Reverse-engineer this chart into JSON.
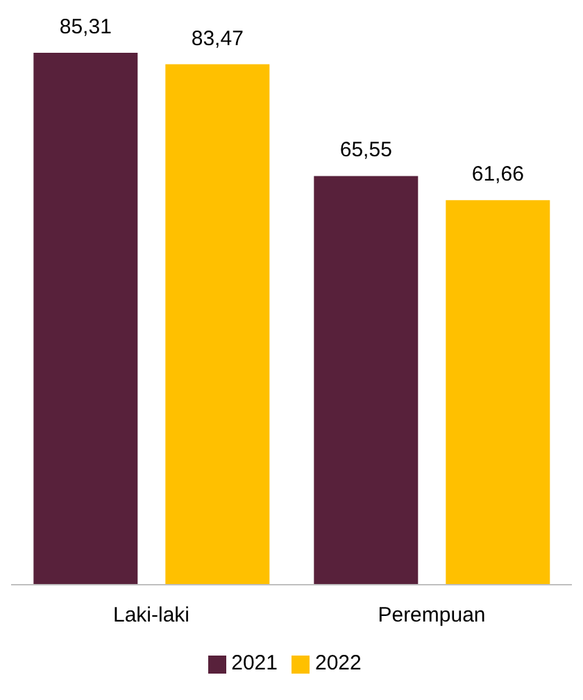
{
  "chart_data": {
    "type": "bar",
    "categories": [
      "Laki-laki",
      "Perempuan"
    ],
    "series": [
      {
        "name": "2021",
        "color": "#58213b",
        "values": [
          85.31,
          65.55
        ],
        "value_labels": [
          "85,31",
          "65,55"
        ]
      },
      {
        "name": "2022",
        "color": "#ffc000",
        "values": [
          83.47,
          61.66
        ],
        "value_labels": [
          "83,47",
          "61,66"
        ]
      }
    ],
    "legend": "bottom"
  }
}
